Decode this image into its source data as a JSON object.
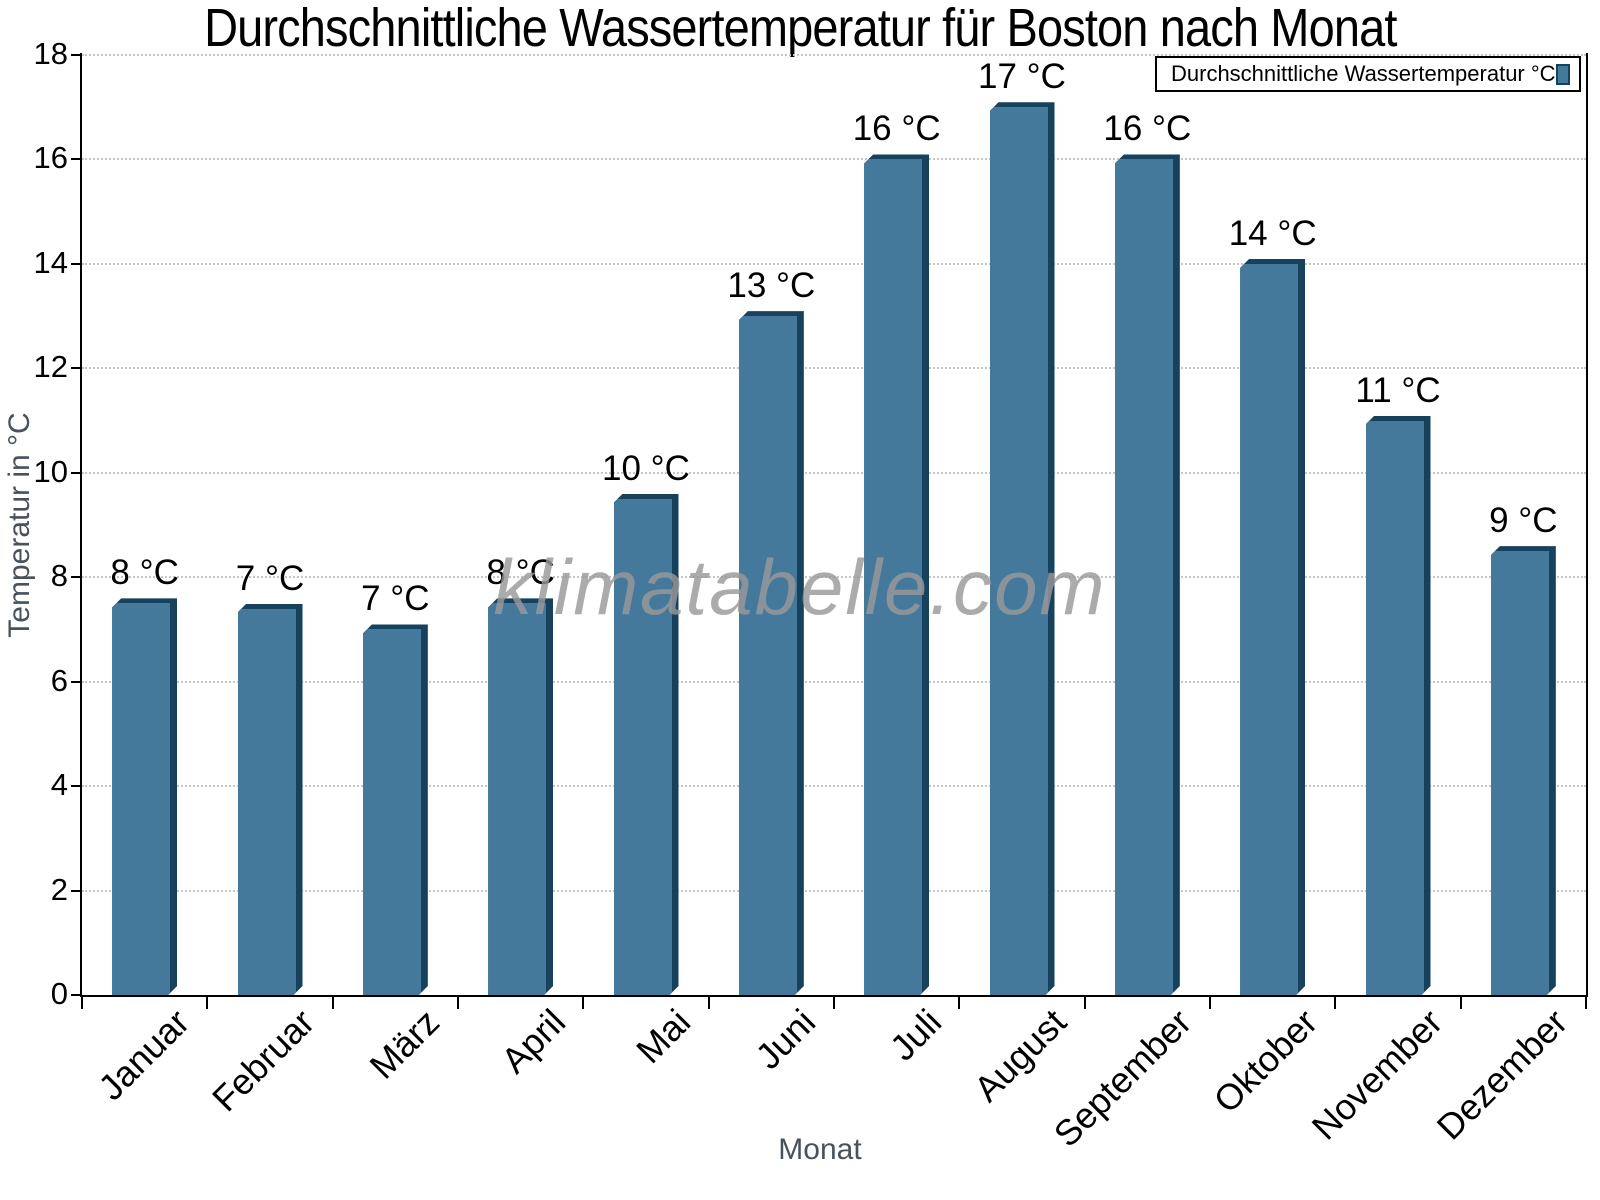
{
  "title": "Durchschnittliche Wassertemperatur für Boston nach Monat",
  "legend": {
    "label": "Durchschnittliche Wassertemperatur °C"
  },
  "watermark": "klimatabelle.com",
  "axes": {
    "x_label": "Monat",
    "y_label": "Temperatur in °C"
  },
  "colors": {
    "bar_face": "#44799C",
    "bar_edge": "#17425E",
    "grid": "#c6c6c6",
    "axis": "#000000",
    "axis_title_gray": "#47525d",
    "watermark_gray": "#999999"
  },
  "chart_data": {
    "type": "bar",
    "title": "Durchschnittliche Wassertemperatur für Boston nach Monat",
    "xlabel": "Monat",
    "ylabel": "Temperatur in °C",
    "categories": [
      "Januar",
      "Februar",
      "März",
      "April",
      "Mai",
      "Juni",
      "Juli",
      "August",
      "September",
      "Oktober",
      "November",
      "Dezember"
    ],
    "values": [
      7.5,
      7.4,
      7.0,
      7.5,
      9.5,
      13.0,
      16.0,
      17.0,
      16.0,
      14.0,
      11.0,
      8.5
    ],
    "bar_labels": [
      "8 °C",
      "7 °C",
      "7 °C",
      "8 °C",
      "10 °C",
      "13 °C",
      "16 °C",
      "17 °C",
      "16 °C",
      "14 °C",
      "11 °C",
      "9 °C"
    ],
    "series_name": "Durchschnittliche Wassertemperatur °C",
    "ylim": [
      0,
      18
    ],
    "yticks": [
      0,
      2,
      4,
      6,
      8,
      10,
      12,
      14,
      16,
      18
    ],
    "grid": "horizontal-dotted",
    "legend_position": "top-right",
    "x_tick_rotation_deg": 45
  }
}
